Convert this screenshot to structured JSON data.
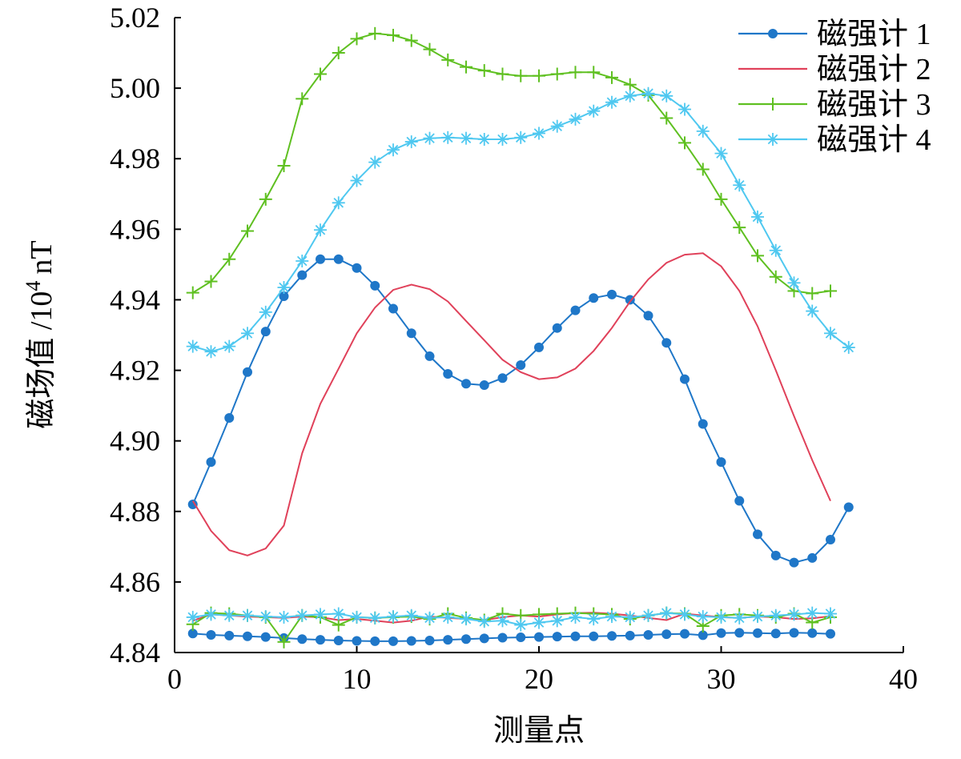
{
  "chart_data": {
    "type": "line",
    "xlabel": "测量点",
    "ylabel": "磁场值 /10",
    "ylabel_sup": "4",
    "ylabel_unit": "nT",
    "xlim": [
      0,
      40
    ],
    "ylim": [
      4.84,
      5.02
    ],
    "xticks": [
      0,
      10,
      20,
      30,
      40
    ],
    "yticks": [
      "4.84",
      "4.86",
      "4.88",
      "4.90",
      "4.92",
      "4.94",
      "4.96",
      "4.98",
      "5.00",
      "5.02"
    ],
    "legend_position": "top-right",
    "grid": false,
    "series": [
      {
        "name": "磁强计 1",
        "color": "#1f77c8",
        "marker": "dot",
        "x": [
          1,
          2,
          3,
          4,
          5,
          6,
          7,
          8,
          9,
          10,
          11,
          12,
          13,
          14,
          15,
          16,
          17,
          18,
          19,
          20,
          21,
          22,
          23,
          24,
          25,
          26,
          27,
          28,
          29,
          30,
          31,
          32,
          33,
          34,
          35,
          36,
          37
        ],
        "y": [
          4.882,
          4.894,
          4.9065,
          4.9195,
          4.931,
          4.941,
          4.947,
          4.9515,
          4.9515,
          4.949,
          4.944,
          4.9375,
          4.9305,
          4.924,
          4.919,
          4.9162,
          4.9158,
          4.9178,
          4.9215,
          4.9265,
          4.932,
          4.937,
          4.9405,
          4.9415,
          4.94,
          4.9355,
          4.9278,
          4.9175,
          4.9048,
          4.894,
          4.883,
          4.8735,
          4.8675,
          4.8655,
          4.8668,
          4.872,
          4.8812
        ]
      },
      {
        "name": "磁强计 2",
        "color": "#e0415a",
        "marker": "none",
        "x": [
          1,
          2,
          3,
          4,
          5,
          6,
          7,
          8,
          9,
          10,
          11,
          12,
          13,
          14,
          15,
          16,
          17,
          18,
          19,
          20,
          21,
          22,
          23,
          24,
          25,
          26,
          27,
          28,
          29,
          30,
          31,
          32,
          33,
          34,
          35,
          36
        ],
        "y": [
          4.883,
          4.8745,
          4.869,
          4.8675,
          4.8695,
          4.876,
          4.8965,
          4.9105,
          4.9205,
          4.9305,
          4.9378,
          4.9428,
          4.9443,
          4.943,
          4.9395,
          4.934,
          4.9285,
          4.923,
          4.9195,
          4.9175,
          4.918,
          4.9205,
          4.9255,
          4.932,
          4.9395,
          4.9458,
          4.9505,
          4.9528,
          4.9532,
          4.9495,
          4.9425,
          4.9325,
          4.92,
          4.907,
          4.8945,
          4.883
        ]
      },
      {
        "name": "磁强计 3",
        "color": "#5fc021",
        "marker": "plus",
        "x": [
          1,
          2,
          3,
          4,
          5,
          6,
          7,
          8,
          9,
          10,
          11,
          12,
          13,
          14,
          15,
          16,
          17,
          18,
          19,
          20,
          21,
          22,
          23,
          24,
          25,
          26,
          27,
          28,
          29,
          30,
          31,
          32,
          33,
          34,
          35,
          36
        ],
        "y": [
          4.942,
          4.9452,
          4.9515,
          4.9595,
          4.9685,
          4.978,
          4.997,
          5.004,
          5.01,
          5.014,
          5.0155,
          5.015,
          5.0135,
          5.011,
          5.008,
          5.006,
          5.005,
          5.004,
          5.0035,
          5.0035,
          5.004,
          5.0045,
          5.0045,
          5.003,
          5.001,
          4.998,
          4.9915,
          4.9845,
          4.977,
          4.9685,
          4.9605,
          4.9525,
          4.9465,
          4.9425,
          4.9418,
          4.9425
        ]
      },
      {
        "name": "磁强计 4",
        "color": "#4fc8f0",
        "marker": "asterisk",
        "x": [
          1,
          2,
          3,
          4,
          5,
          6,
          7,
          8,
          9,
          10,
          11,
          12,
          13,
          14,
          15,
          16,
          17,
          18,
          19,
          20,
          21,
          22,
          23,
          24,
          25,
          26,
          27,
          28,
          29,
          30,
          31,
          32,
          33,
          34,
          35,
          36,
          37
        ],
        "y": [
          4.9268,
          4.9253,
          4.9268,
          4.9305,
          4.9365,
          4.9435,
          4.951,
          4.9598,
          4.9675,
          4.9738,
          4.979,
          4.9825,
          4.9848,
          4.9858,
          4.986,
          4.9858,
          4.9855,
          4.9855,
          4.986,
          4.9872,
          4.9892,
          4.9912,
          4.9935,
          4.996,
          4.9978,
          4.9985,
          4.9978,
          4.994,
          4.9878,
          4.9815,
          4.9725,
          4.9635,
          4.954,
          4.9448,
          4.9368,
          4.9305,
          4.9265
        ]
      }
    ],
    "baseline_series": [
      {
        "name": "磁强计 1",
        "y": [
          4.8454,
          4.845,
          4.8448,
          4.8446,
          4.8444,
          4.8441,
          4.8438,
          4.8436,
          4.8434,
          4.8433,
          4.8432,
          4.8432,
          4.8433,
          4.8434,
          4.8436,
          4.8438,
          4.844,
          4.8442,
          4.8443,
          4.8444,
          4.8445,
          4.8446,
          4.8446,
          4.8447,
          4.8448,
          4.845,
          4.8452,
          4.8453,
          4.8449,
          4.8455,
          4.8456,
          4.8455,
          4.8454,
          4.8456,
          4.8455,
          4.8453
        ]
      },
      {
        "name": "磁强计 2",
        "y": [
          4.849,
          4.8508,
          4.8505,
          4.8502,
          4.85,
          4.8498,
          4.8502,
          4.85,
          4.8492,
          4.8495,
          4.849,
          4.8485,
          4.849,
          4.8502,
          4.8498,
          4.8495,
          4.8492,
          4.85,
          4.8505,
          4.8502,
          4.8508,
          4.8512,
          4.8513,
          4.851,
          4.8505,
          4.8498,
          4.8492,
          4.851,
          4.8505,
          4.85,
          4.8498,
          4.8502,
          4.85,
          4.8495,
          4.8497,
          4.8503
        ]
      },
      {
        "name": "磁强计 3",
        "y": [
          4.848,
          4.8512,
          4.851,
          4.8505,
          4.85,
          4.843,
          4.8505,
          4.85,
          4.8478,
          4.85,
          4.8498,
          4.85,
          4.8502,
          4.8495,
          4.851,
          4.8498,
          4.8492,
          4.851,
          4.8505,
          4.8508,
          4.851,
          4.8512,
          4.851,
          4.8508,
          4.8495,
          4.8505,
          4.8512,
          4.851,
          4.8475,
          4.8505,
          4.8508,
          4.8505,
          4.85,
          4.851,
          4.8485,
          4.85
        ]
      },
      {
        "name": "磁强计 4",
        "y": [
          4.85,
          4.8508,
          4.8505,
          4.8505,
          4.8502,
          4.85,
          4.8505,
          4.8508,
          4.851,
          4.85,
          4.8498,
          4.8502,
          4.8505,
          4.8498,
          4.85,
          4.8495,
          4.8488,
          4.849,
          4.8478,
          4.8485,
          4.849,
          4.85,
          4.8495,
          4.8502,
          4.85,
          4.8505,
          4.8512,
          4.8508,
          4.8502,
          4.85,
          4.8498,
          4.8502,
          4.8505,
          4.8508,
          4.8512,
          4.851
        ]
      }
    ]
  }
}
